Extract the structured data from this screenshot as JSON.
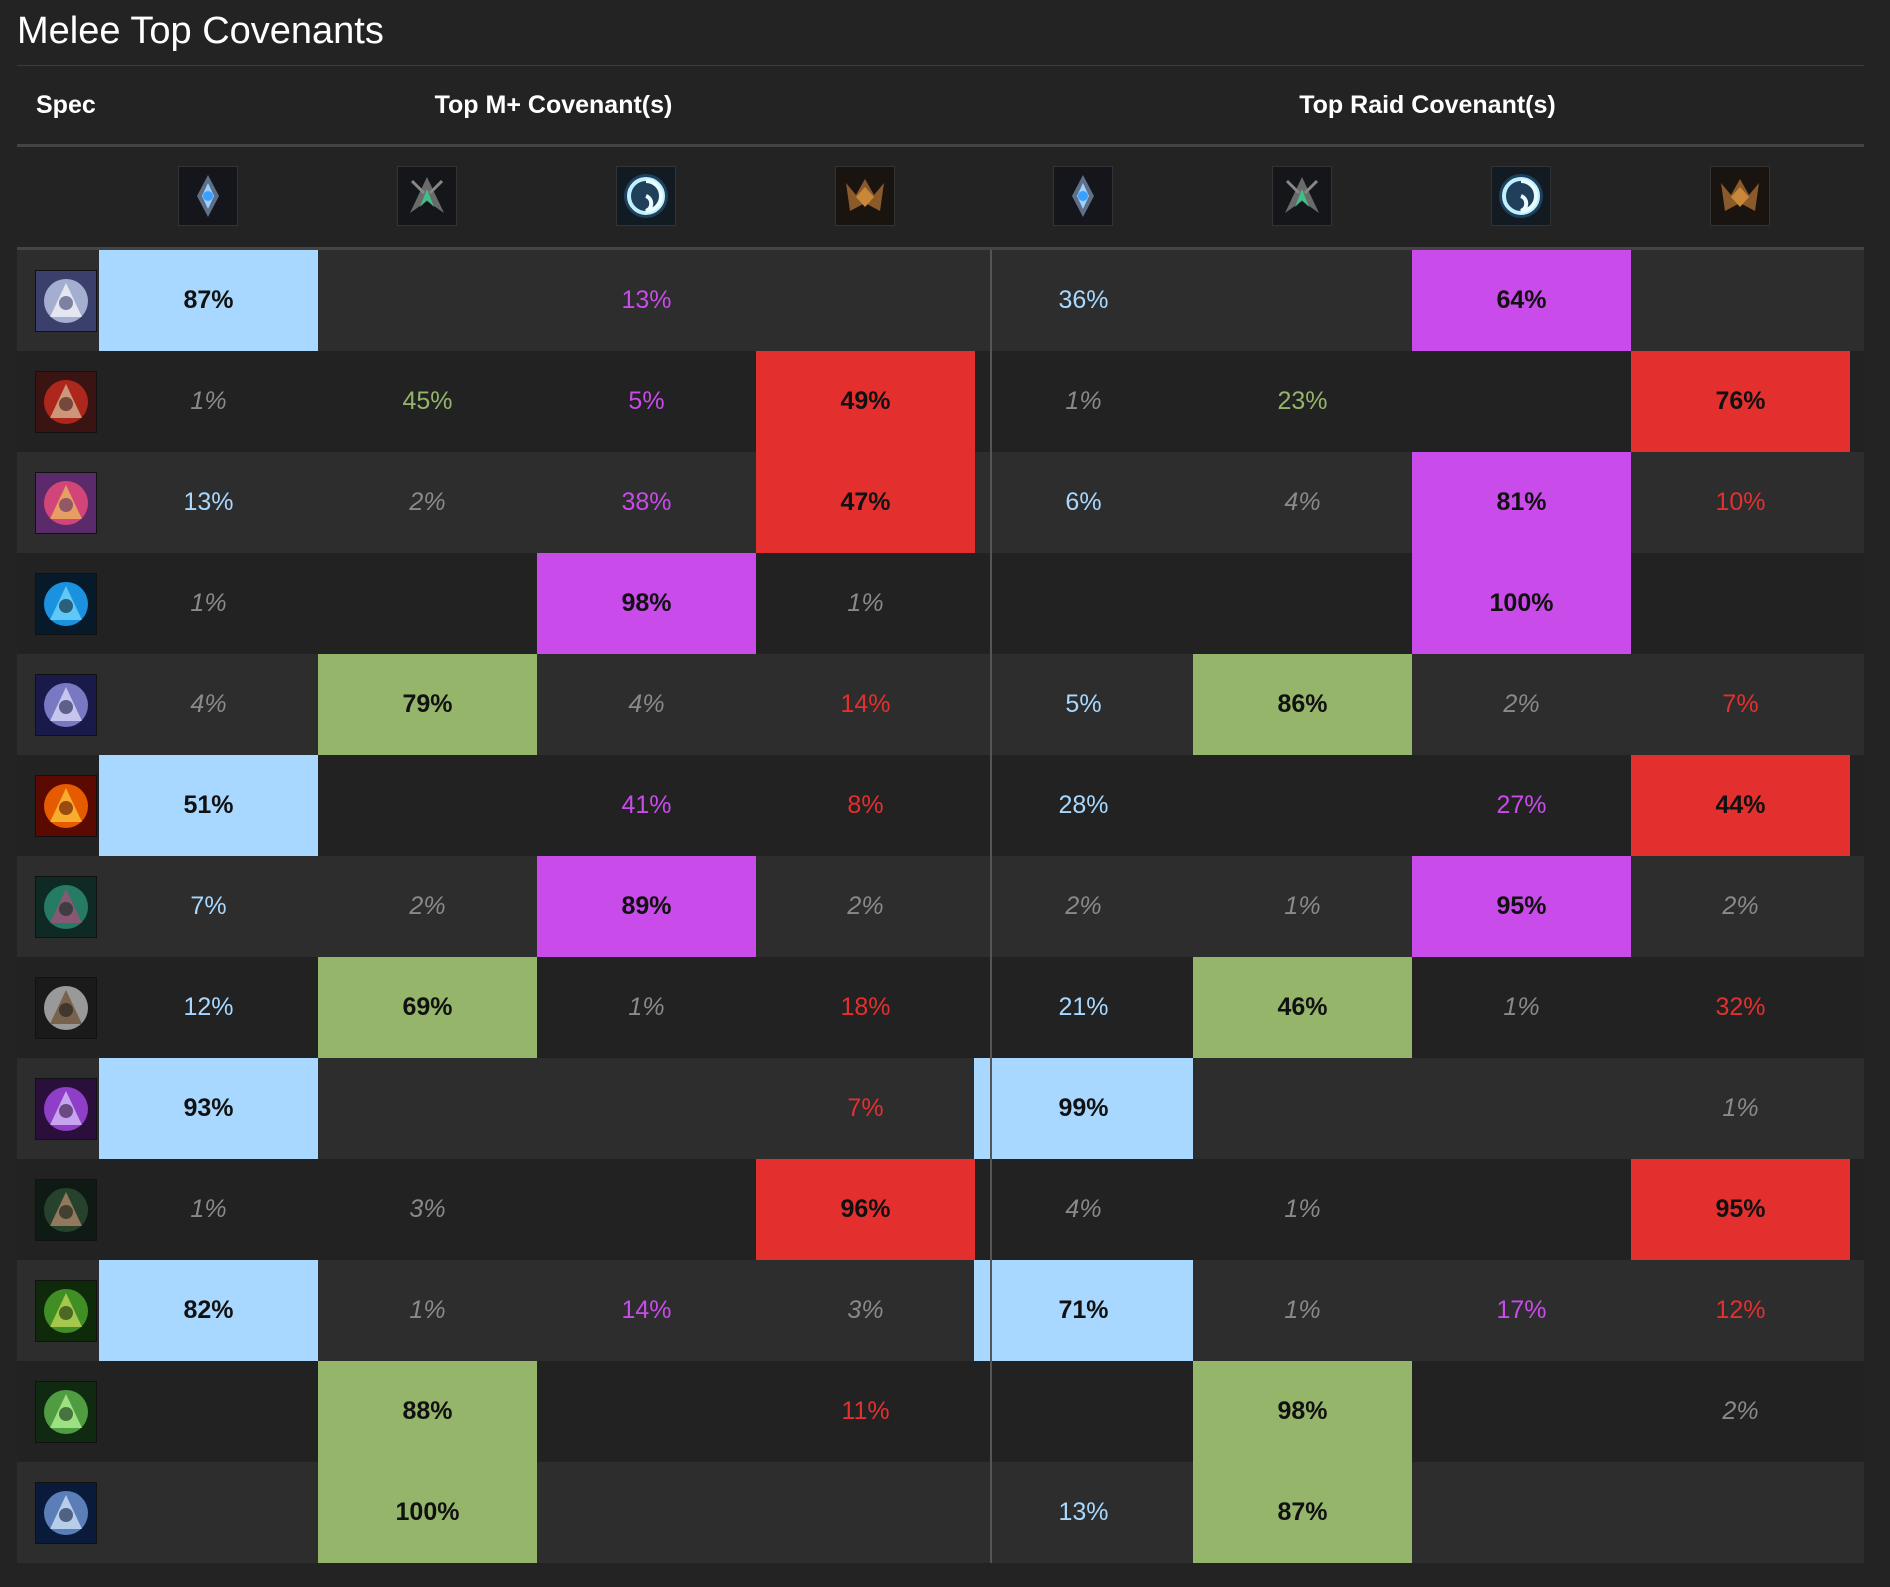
{
  "title": "Melee Top Covenants",
  "headers": {
    "spec": "Spec",
    "mplus": "Top M+ Covenant(s)",
    "raid": "Top Raid Covenant(s)"
  },
  "covenants": [
    {
      "key": "kyrian",
      "icon": "kyrian-crest-icon",
      "color": "#a8d8ff"
    },
    {
      "key": "necrolord",
      "icon": "necrolord-crest-icon",
      "color": "#95b56a"
    },
    {
      "key": "nightfae",
      "icon": "night-fae-crest-icon",
      "color": "#c84bea"
    },
    {
      "key": "venthyr",
      "icon": "venthyr-crest-icon",
      "color": "#e3302f"
    }
  ],
  "colors": {
    "kyrian": "#a8d8ff",
    "necrolord": "#95b56a",
    "nightfae": "#c84bea",
    "venthyr": "#e3302f",
    "low": "#8a8a8a"
  },
  "rows": [
    {
      "spec_icon": "axe-icon",
      "mplus": [
        "87%",
        "",
        "13%",
        ""
      ],
      "raid": [
        "36%",
        "",
        "64%",
        ""
      ]
    },
    {
      "spec_icon": "bloody-axe-icon",
      "mplus": [
        "1%",
        "45%",
        "5%",
        "49%"
      ],
      "raid": [
        "1%",
        "23%",
        "",
        "76%"
      ]
    },
    {
      "spec_icon": "crusader-hammer-icon",
      "mplus": [
        "13%",
        "2%",
        "38%",
        "47%"
      ],
      "raid": [
        "6%",
        "4%",
        "81%",
        "10%"
      ]
    },
    {
      "spec_icon": "frost-claw-icon",
      "mplus": [
        "1%",
        "",
        "98%",
        "1%"
      ],
      "raid": [
        "",
        "",
        "100%",
        ""
      ]
    },
    {
      "spec_icon": "frost-skull-icon",
      "mplus": [
        "4%",
        "79%",
        "4%",
        "14%"
      ],
      "raid": [
        "5%",
        "86%",
        "2%",
        "7%"
      ]
    },
    {
      "spec_icon": "fire-wings-icon",
      "mplus": [
        "51%",
        "",
        "41%",
        "8%"
      ],
      "raid": [
        "28%",
        "",
        "27%",
        "44%"
      ]
    },
    {
      "spec_icon": "demon-mask-icon",
      "mplus": [
        "7%",
        "2%",
        "89%",
        "2%"
      ],
      "raid": [
        "2%",
        "1%",
        "95%",
        "2%"
      ]
    },
    {
      "spec_icon": "mace-icon",
      "mplus": [
        "12%",
        "69%",
        "1%",
        "18%"
      ],
      "raid": [
        "21%",
        "46%",
        "1%",
        "32%"
      ]
    },
    {
      "spec_icon": "arcane-hammer-icon",
      "mplus": [
        "93%",
        "",
        "",
        "7%"
      ],
      "raid": [
        "99%",
        "",
        "",
        "1%"
      ]
    },
    {
      "spec_icon": "hooded-rogue-icon",
      "mplus": [
        "1%",
        "3%",
        "",
        "96%"
      ],
      "raid": [
        "4%",
        "1%",
        "",
        "95%"
      ]
    },
    {
      "spec_icon": "green-elf-icon",
      "mplus": [
        "82%",
        "1%",
        "14%",
        "3%"
      ],
      "raid": [
        "71%",
        "1%",
        "17%",
        "12%"
      ]
    },
    {
      "spec_icon": "plague-skull-icon",
      "mplus": [
        "",
        "88%",
        "",
        "11%"
      ],
      "raid": [
        "",
        "98%",
        "",
        "2%"
      ]
    },
    {
      "spec_icon": "wolf-spirit-icon",
      "mplus": [
        "",
        "100%",
        "",
        ""
      ],
      "raid": [
        "13%",
        "87%",
        "",
        ""
      ]
    }
  ]
}
